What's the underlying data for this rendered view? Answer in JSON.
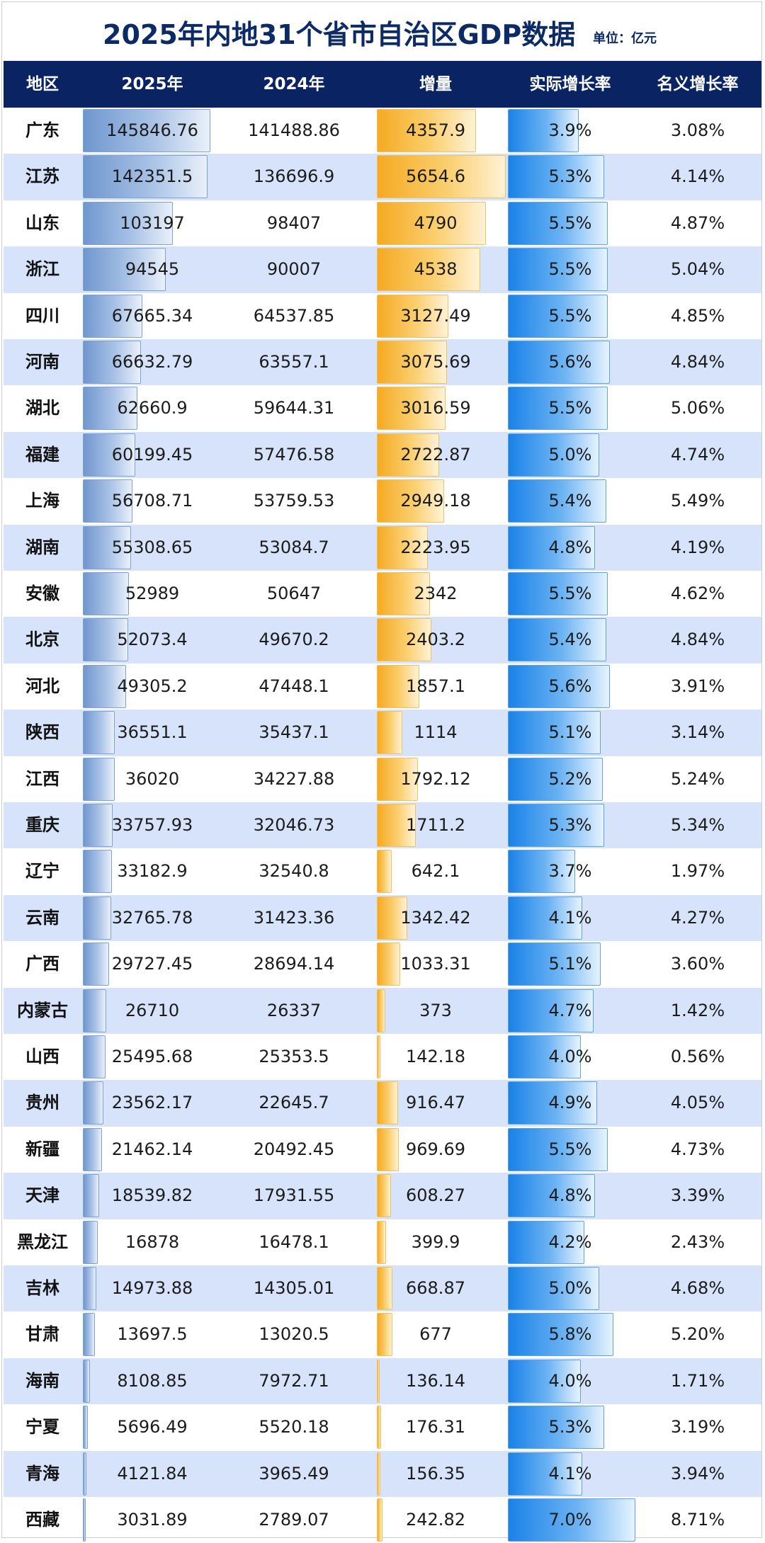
{
  "title": "2025年内地31个省市自治区GDP数据",
  "unit": "单位：亿元",
  "columns": [
    "地区",
    "2025年",
    "2024年",
    "增量",
    "实际增长率",
    "名义增长率"
  ],
  "colors": {
    "header_bg": "#0a2463",
    "title": "#0b2a66",
    "alt_row": "#d6e3fb",
    "gdp_bar": "#6f97cf",
    "increment_bar": "#f5aa22",
    "rate_bar": "#1a82e8"
  },
  "rows": [
    {
      "region": "广东",
      "gdp2025": "145846.76",
      "gdp2024": "141488.86",
      "increment": "4357.9",
      "real_growth": "3.9%",
      "nominal_growth": "3.08%"
    },
    {
      "region": "江苏",
      "gdp2025": "142351.5",
      "gdp2024": "136696.9",
      "increment": "5654.6",
      "real_growth": "5.3%",
      "nominal_growth": "4.14%"
    },
    {
      "region": "山东",
      "gdp2025": "103197",
      "gdp2024": "98407",
      "increment": "4790",
      "real_growth": "5.5%",
      "nominal_growth": "4.87%"
    },
    {
      "region": "浙江",
      "gdp2025": "94545",
      "gdp2024": "90007",
      "increment": "4538",
      "real_growth": "5.5%",
      "nominal_growth": "5.04%"
    },
    {
      "region": "四川",
      "gdp2025": "67665.34",
      "gdp2024": "64537.85",
      "increment": "3127.49",
      "real_growth": "5.5%",
      "nominal_growth": "4.85%"
    },
    {
      "region": "河南",
      "gdp2025": "66632.79",
      "gdp2024": "63557.1",
      "increment": "3075.69",
      "real_growth": "5.6%",
      "nominal_growth": "4.84%"
    },
    {
      "region": "湖北",
      "gdp2025": "62660.9",
      "gdp2024": "59644.31",
      "increment": "3016.59",
      "real_growth": "5.5%",
      "nominal_growth": "5.06%"
    },
    {
      "region": "福建",
      "gdp2025": "60199.45",
      "gdp2024": "57476.58",
      "increment": "2722.87",
      "real_growth": "5.0%",
      "nominal_growth": "4.74%"
    },
    {
      "region": "上海",
      "gdp2025": "56708.71",
      "gdp2024": "53759.53",
      "increment": "2949.18",
      "real_growth": "5.4%",
      "nominal_growth": "5.49%"
    },
    {
      "region": "湖南",
      "gdp2025": "55308.65",
      "gdp2024": "53084.7",
      "increment": "2223.95",
      "real_growth": "4.8%",
      "nominal_growth": "4.19%"
    },
    {
      "region": "安徽",
      "gdp2025": "52989",
      "gdp2024": "50647",
      "increment": "2342",
      "real_growth": "5.5%",
      "nominal_growth": "4.62%"
    },
    {
      "region": "北京",
      "gdp2025": "52073.4",
      "gdp2024": "49670.2",
      "increment": "2403.2",
      "real_growth": "5.4%",
      "nominal_growth": "4.84%"
    },
    {
      "region": "河北",
      "gdp2025": "49305.2",
      "gdp2024": "47448.1",
      "increment": "1857.1",
      "real_growth": "5.6%",
      "nominal_growth": "3.91%"
    },
    {
      "region": "陕西",
      "gdp2025": "36551.1",
      "gdp2024": "35437.1",
      "increment": "1114",
      "real_growth": "5.1%",
      "nominal_growth": "3.14%"
    },
    {
      "region": "江西",
      "gdp2025": "36020",
      "gdp2024": "34227.88",
      "increment": "1792.12",
      "real_growth": "5.2%",
      "nominal_growth": "5.24%"
    },
    {
      "region": "重庆",
      "gdp2025": "33757.93",
      "gdp2024": "32046.73",
      "increment": "1711.2",
      "real_growth": "5.3%",
      "nominal_growth": "5.34%"
    },
    {
      "region": "辽宁",
      "gdp2025": "33182.9",
      "gdp2024": "32540.8",
      "increment": "642.1",
      "real_growth": "3.7%",
      "nominal_growth": "1.97%"
    },
    {
      "region": "云南",
      "gdp2025": "32765.78",
      "gdp2024": "31423.36",
      "increment": "1342.42",
      "real_growth": "4.1%",
      "nominal_growth": "4.27%"
    },
    {
      "region": "广西",
      "gdp2025": "29727.45",
      "gdp2024": "28694.14",
      "increment": "1033.31",
      "real_growth": "5.1%",
      "nominal_growth": "3.60%"
    },
    {
      "region": "内蒙古",
      "gdp2025": "26710",
      "gdp2024": "26337",
      "increment": "373",
      "real_growth": "4.7%",
      "nominal_growth": "1.42%"
    },
    {
      "region": "山西",
      "gdp2025": "25495.68",
      "gdp2024": "25353.5",
      "increment": "142.18",
      "real_growth": "4.0%",
      "nominal_growth": "0.56%"
    },
    {
      "region": "贵州",
      "gdp2025": "23562.17",
      "gdp2024": "22645.7",
      "increment": "916.47",
      "real_growth": "4.9%",
      "nominal_growth": "4.05%"
    },
    {
      "region": "新疆",
      "gdp2025": "21462.14",
      "gdp2024": "20492.45",
      "increment": "969.69",
      "real_growth": "5.5%",
      "nominal_growth": "4.73%"
    },
    {
      "region": "天津",
      "gdp2025": "18539.82",
      "gdp2024": "17931.55",
      "increment": "608.27",
      "real_growth": "4.8%",
      "nominal_growth": "3.39%"
    },
    {
      "region": "黑龙江",
      "gdp2025": "16878",
      "gdp2024": "16478.1",
      "increment": "399.9",
      "real_growth": "4.2%",
      "nominal_growth": "2.43%"
    },
    {
      "region": "吉林",
      "gdp2025": "14973.88",
      "gdp2024": "14305.01",
      "increment": "668.87",
      "real_growth": "5.0%",
      "nominal_growth": "4.68%"
    },
    {
      "region": "甘肃",
      "gdp2025": "13697.5",
      "gdp2024": "13020.5",
      "increment": "677",
      "real_growth": "5.8%",
      "nominal_growth": "5.20%"
    },
    {
      "region": "海南",
      "gdp2025": "8108.85",
      "gdp2024": "7972.71",
      "increment": "136.14",
      "real_growth": "4.0%",
      "nominal_growth": "1.71%"
    },
    {
      "region": "宁夏",
      "gdp2025": "5696.49",
      "gdp2024": "5520.18",
      "increment": "176.31",
      "real_growth": "5.3%",
      "nominal_growth": "3.19%"
    },
    {
      "region": "青海",
      "gdp2025": "4121.84",
      "gdp2024": "3965.49",
      "increment": "156.35",
      "real_growth": "4.1%",
      "nominal_growth": "3.94%"
    },
    {
      "region": "西藏",
      "gdp2025": "3031.89",
      "gdp2024": "2789.07",
      "increment": "242.82",
      "real_growth": "7.0%",
      "nominal_growth": "8.71%"
    }
  ]
}
